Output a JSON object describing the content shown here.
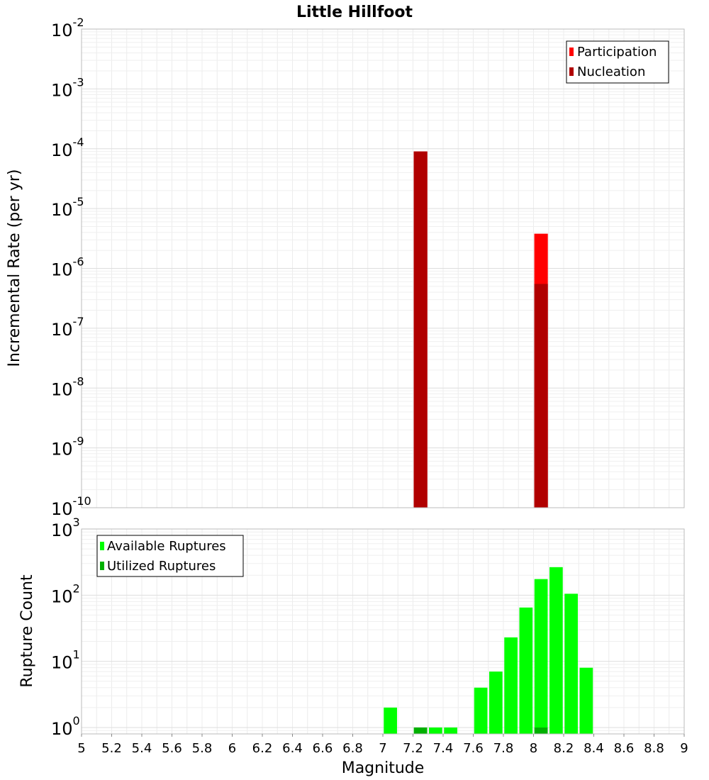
{
  "chart_data": [
    {
      "type": "bar",
      "title": "Little Hillfoot",
      "ylabel": "Incremental Rate (per yr)",
      "yscale": "log",
      "ylim": [
        1e-10,
        0.01
      ],
      "xlim": [
        5,
        9
      ],
      "grid": true,
      "legend_position": "top-right",
      "y_tick_bases": [
        "10",
        "10",
        "10",
        "10",
        "10",
        "10",
        "10",
        "10",
        "10"
      ],
      "y_tick_exponents": [
        "-10",
        "-9",
        "-8",
        "-7",
        "-6",
        "-5",
        "-4",
        "-3",
        "-2"
      ],
      "series": [
        {
          "name": "Participation",
          "color": "#ff0000",
          "x": [
            7.25,
            8.05
          ],
          "values": [
            9e-05,
            3.8e-06
          ]
        },
        {
          "name": "Nucleation",
          "color": "#b00000",
          "x": [
            7.25,
            8.05
          ],
          "values": [
            9e-05,
            5.5e-07
          ]
        }
      ]
    },
    {
      "type": "bar",
      "xlabel": "Magnitude",
      "ylabel": "Rupture Count",
      "yscale": "log",
      "ylim": [
        0.8,
        1000
      ],
      "xlim": [
        5,
        9
      ],
      "grid": true,
      "legend_position": "top-left",
      "y_tick_bases": [
        "10",
        "10",
        "10",
        "10"
      ],
      "y_tick_exponents": [
        "0",
        "1",
        "2",
        "3"
      ],
      "x_ticks": [
        "5",
        "5.2",
        "5.4",
        "5.6",
        "5.8",
        "6",
        "6.2",
        "6.4",
        "6.6",
        "6.8",
        "7",
        "7.2",
        "7.4",
        "7.6",
        "7.8",
        "8",
        "8.2",
        "8.4",
        "8.6",
        "8.8",
        "9"
      ],
      "series": [
        {
          "name": "Available Ruptures",
          "color": "#00ff00",
          "x": [
            7.05,
            7.25,
            7.35,
            7.45,
            7.65,
            7.75,
            7.85,
            7.95,
            8.05,
            8.15,
            8.25,
            8.35
          ],
          "values": [
            2,
            1,
            1,
            1,
            4,
            7,
            23,
            65,
            175,
            265,
            105,
            8
          ]
        },
        {
          "name": "Utilized Ruptures",
          "color": "#00b000",
          "x": [
            7.25,
            8.05
          ],
          "values": [
            1,
            1
          ]
        }
      ]
    }
  ]
}
